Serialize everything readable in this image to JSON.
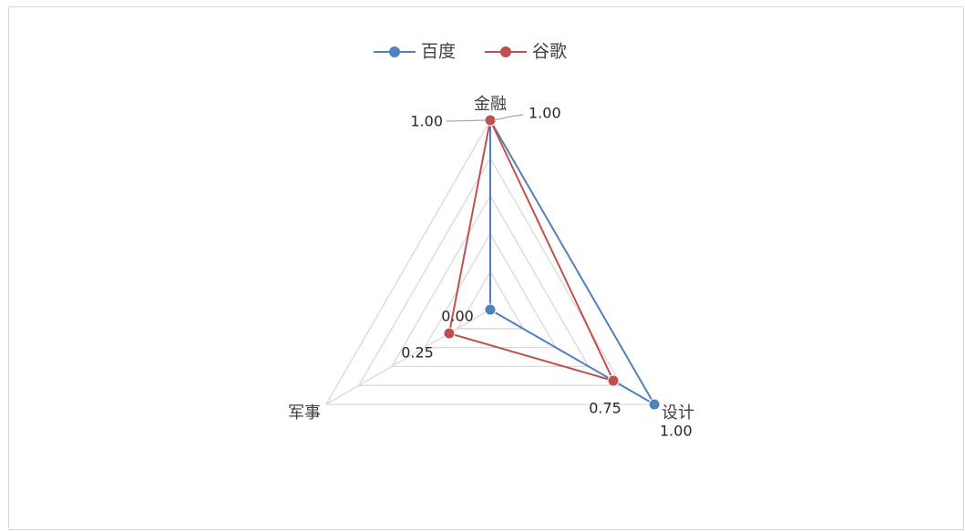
{
  "chart_data": {
    "type": "radar",
    "categories": [
      "金融",
      "设计",
      "军事"
    ],
    "series": [
      {
        "name": "百度",
        "values": [
          1.0,
          1.0,
          0.0
        ],
        "color": "#4f81bd"
      },
      {
        "name": "谷歌",
        "values": [
          1.0,
          0.75,
          0.25
        ],
        "color": "#c0504d"
      }
    ],
    "rlim": [
      0,
      1
    ],
    "gridlines": 5,
    "grid_color": "#d9d9d9",
    "legend_position": "top",
    "data_labels": [
      {
        "series": 0,
        "point": 0,
        "text": "1.00"
      },
      {
        "series": 1,
        "point": 0,
        "text": "1.00"
      },
      {
        "series": 0,
        "point": 1,
        "text": "1.00"
      },
      {
        "series": 1,
        "point": 1,
        "text": "0.75"
      },
      {
        "series": 0,
        "point": 2,
        "text": "0.00"
      },
      {
        "series": 1,
        "point": 2,
        "text": "0.25"
      }
    ]
  }
}
